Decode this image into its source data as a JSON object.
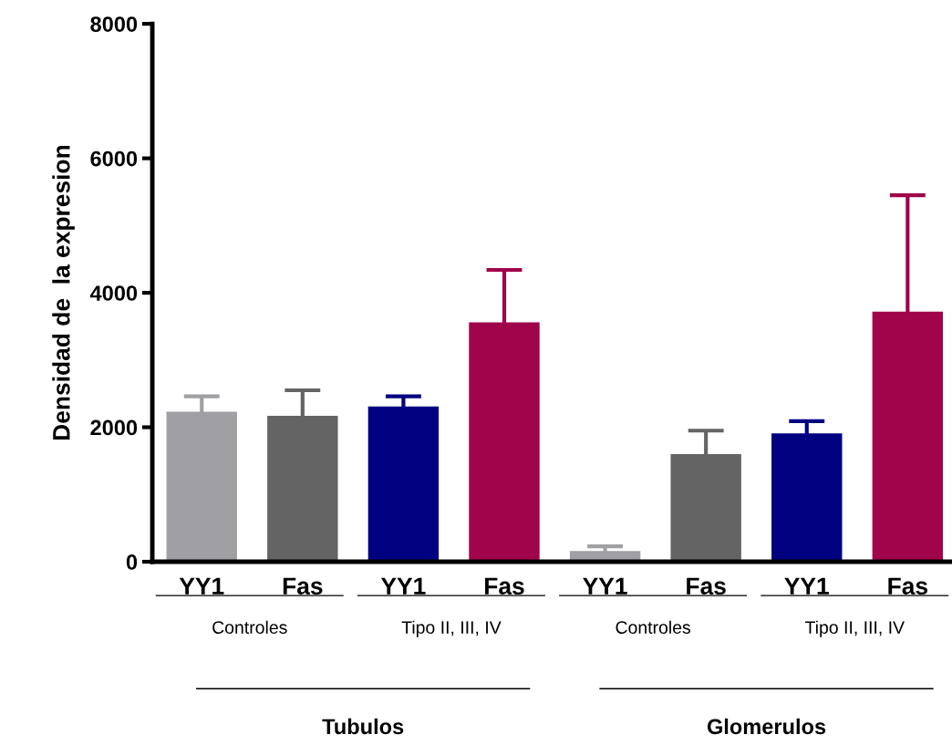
{
  "chart_data": {
    "type": "bar",
    "ylabel": "Densidad de  la expresion",
    "categories": [
      "YY1",
      "Fas",
      "YY1",
      "Fas",
      "YY1",
      "Fas",
      "YY1",
      "Fas"
    ],
    "values": [
      2230,
      2170,
      2310,
      3560,
      160,
      1600,
      1910,
      3720
    ],
    "errors": [
      230,
      380,
      150,
      780,
      70,
      350,
      180,
      1730
    ],
    "colors": [
      "#a0a0a4",
      "#646464",
      "#000080",
      "#a0044a",
      "#a0a0a4",
      "#646464",
      "#000080",
      "#a0044a"
    ],
    "ylim": [
      0,
      8000
    ],
    "yticks": [
      0,
      2000,
      4000,
      6000,
      8000
    ],
    "annotations": [
      "Controles",
      "Tipo II, III, IV",
      "Controles",
      "Tipo II, III, IV",
      "Tubulos",
      "Glomerulos"
    ]
  }
}
